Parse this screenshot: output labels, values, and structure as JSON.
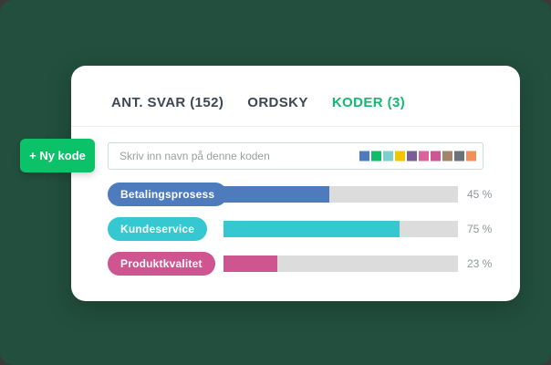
{
  "colors": {
    "outer_bg": "#3b3a39",
    "panel_bg": "#224f3e",
    "card_bg": "#ffffff",
    "tab_text": "#3d4652",
    "tab_active_green": "#13b873",
    "button_green": "#0cc268",
    "input_border": "#c9ded8",
    "bar_track": "#dcdcdc",
    "percent_text": "#8d9499"
  },
  "tabs": [
    {
      "label": "ANT. SVAR (152)",
      "active": false
    },
    {
      "label": "ORDSKY",
      "active": false
    },
    {
      "label": "KODER (3)",
      "active": true
    }
  ],
  "new_code_button": {
    "label": "+ Ny kode"
  },
  "code_input": {
    "placeholder": "Skriv inn navn på denne koden",
    "swatches": [
      "#4d7bbd",
      "#0fbd68",
      "#7ed0cd",
      "#f3c402",
      "#795d97",
      "#da659c",
      "#ce5693",
      "#a3866a",
      "#697278",
      "#f48e5b"
    ]
  },
  "codes": [
    {
      "label": "Betalingsprosess",
      "color": "#4d7bbd",
      "percent": 45,
      "percent_label": "45 %"
    },
    {
      "label": "Kundeservice",
      "color": "#35c8d0",
      "percent": 75,
      "percent_label": "75 %"
    },
    {
      "label": "Produktkvalitet",
      "color": "#ce5590",
      "percent": 23,
      "percent_label": "23 %"
    }
  ],
  "chart_data": {
    "type": "bar",
    "categories": [
      "Betalingsprosess",
      "Kundeservice",
      "Produktkvalitet"
    ],
    "values": [
      45,
      75,
      23
    ],
    "title": "KODER (3)",
    "xlabel": "",
    "ylabel": "",
    "xlim": [
      0,
      100
    ],
    "value_labels": [
      "45 %",
      "75 %",
      "23 %"
    ],
    "orientation": "horizontal",
    "bar_colors": [
      "#4d7bbd",
      "#35c8d0",
      "#ce5590"
    ]
  }
}
